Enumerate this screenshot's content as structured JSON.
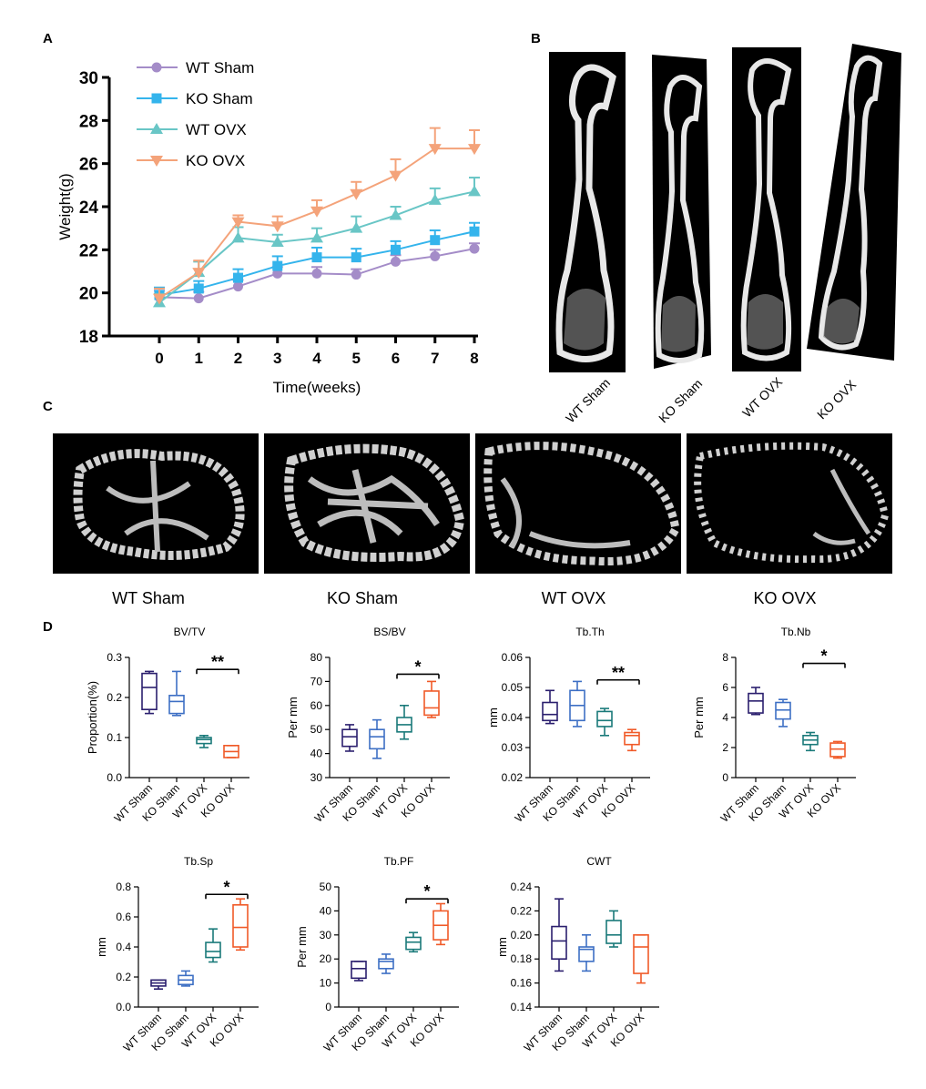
{
  "panels": {
    "a": "A",
    "b": "B",
    "c": "C",
    "d": "D"
  },
  "colors": {
    "wt_sham": "#2b1f6e",
    "ko_sham": "#3d6fc4",
    "wt_ovx": "#1a7a7a",
    "ko_ovx": "#f05a28",
    "lineA_wt_sham": "#a48cc8",
    "lineA_ko_sham": "#34b4ec",
    "lineA_wt_ovx": "#69c6c6",
    "lineA_ko_ovx": "#f4a37a"
  },
  "panel_b": {
    "labels": [
      "WT Sham",
      "KO Sham",
      "WT OVX",
      "KO OVX"
    ]
  },
  "panel_c": {
    "labels": [
      "WT Sham",
      "KO Sham",
      "WT OVX",
      "KO OVX"
    ]
  },
  "chart_data": [
    {
      "type": "line",
      "panel": "A",
      "xlabel": "Time(weeks)",
      "ylabel": "Weight(g)",
      "x": [
        0,
        1,
        2,
        3,
        4,
        5,
        6,
        7,
        8
      ],
      "xlim": [
        0,
        8
      ],
      "ylim": [
        18,
        30
      ],
      "yticks": [
        18,
        20,
        22,
        24,
        26,
        28,
        30
      ],
      "legend_position": "top-left",
      "series": [
        {
          "name": "WT Sham",
          "marker": "circle",
          "values": [
            19.8,
            19.75,
            20.3,
            20.9,
            20.9,
            20.85,
            21.45,
            21.7,
            22.05
          ],
          "errors": [
            0.3,
            0.3,
            0.3,
            0.3,
            0.3,
            0.25,
            0.3,
            0.3,
            0.25
          ]
        },
        {
          "name": "KO Sham",
          "marker": "square",
          "values": [
            19.9,
            20.2,
            20.7,
            21.25,
            21.65,
            21.65,
            22.0,
            22.45,
            22.85
          ],
          "errors": [
            0.35,
            0.35,
            0.4,
            0.45,
            0.45,
            0.4,
            0.4,
            0.45,
            0.4
          ]
        },
        {
          "name": "WT OVX",
          "marker": "triangle-up",
          "values": [
            19.55,
            20.95,
            22.55,
            22.35,
            22.55,
            23.0,
            23.6,
            24.3,
            24.7
          ],
          "errors": [
            0.4,
            0.5,
            0.5,
            0.35,
            0.45,
            0.55,
            0.4,
            0.55,
            0.65
          ]
        },
        {
          "name": "KO OVX",
          "marker": "triangle-down",
          "values": [
            19.75,
            20.95,
            23.3,
            23.1,
            23.8,
            24.6,
            25.45,
            26.7,
            26.7
          ],
          "errors": [
            0.45,
            0.55,
            0.3,
            0.45,
            0.5,
            0.55,
            0.75,
            0.95,
            0.85
          ]
        }
      ]
    },
    {
      "type": "box",
      "panel": "D",
      "title": "BV/TV",
      "ylabel": "Proportion(%)",
      "categories": [
        "WT Sham",
        "KO Sham",
        "WT OVX",
        "KO OVX"
      ],
      "ylim": [
        0.0,
        0.3
      ],
      "yticks": [
        "0.0",
        "0.1",
        "0.2",
        "0.3"
      ],
      "boxes": [
        {
          "min": 0.16,
          "q1": 0.17,
          "median": 0.225,
          "q3": 0.26,
          "max": 0.265
        },
        {
          "min": 0.155,
          "q1": 0.16,
          "median": 0.19,
          "q3": 0.205,
          "max": 0.265
        },
        {
          "min": 0.075,
          "q1": 0.085,
          "median": 0.095,
          "q3": 0.1,
          "max": 0.105
        },
        {
          "min": 0.05,
          "q1": 0.05,
          "median": 0.065,
          "q3": 0.08,
          "max": 0.08
        }
      ],
      "significance": {
        "from": 2,
        "to": 3,
        "label": "**",
        "y": 0.27
      }
    },
    {
      "type": "box",
      "panel": "D",
      "title": "BS/BV",
      "ylabel": "Per mm",
      "categories": [
        "WT Sham",
        "KO Sham",
        "WT OVX",
        "KO OVX"
      ],
      "ylim": [
        30,
        80
      ],
      "yticks": [
        "30",
        "40",
        "50",
        "60",
        "70",
        "80"
      ],
      "boxes": [
        {
          "min": 41,
          "q1": 43,
          "median": 47,
          "q3": 50,
          "max": 52
        },
        {
          "min": 38,
          "q1": 42,
          "median": 47,
          "q3": 50,
          "max": 54
        },
        {
          "min": 46,
          "q1": 49,
          "median": 52,
          "q3": 55,
          "max": 60
        },
        {
          "min": 55,
          "q1": 56,
          "median": 59,
          "q3": 66,
          "max": 70
        }
      ],
      "significance": {
        "from": 2,
        "to": 3,
        "label": "*",
        "y": 73
      }
    },
    {
      "type": "box",
      "panel": "D",
      "title": "Tb.Th",
      "ylabel": "mm",
      "categories": [
        "WT Sham",
        "KO Sham",
        "WT OVX",
        "KO OVX"
      ],
      "ylim": [
        0.02,
        0.06
      ],
      "yticks": [
        "0.02",
        "0.03",
        "0.04",
        "0.05",
        "0.06"
      ],
      "boxes": [
        {
          "min": 0.038,
          "q1": 0.039,
          "median": 0.041,
          "q3": 0.045,
          "max": 0.049
        },
        {
          "min": 0.037,
          "q1": 0.039,
          "median": 0.044,
          "q3": 0.049,
          "max": 0.052
        },
        {
          "min": 0.034,
          "q1": 0.037,
          "median": 0.039,
          "q3": 0.042,
          "max": 0.043
        },
        {
          "min": 0.029,
          "q1": 0.031,
          "median": 0.034,
          "q3": 0.035,
          "max": 0.036
        }
      ],
      "significance": {
        "from": 2,
        "to": 3,
        "label": "**",
        "y": 0.0525
      }
    },
    {
      "type": "box",
      "panel": "D",
      "title": "Tb.Nb",
      "ylabel": "Per mm",
      "categories": [
        "WT Sham",
        "KO Sham",
        "WT OVX",
        "KO OVX"
      ],
      "ylim": [
        0,
        8
      ],
      "yticks": [
        "0",
        "2",
        "4",
        "6",
        "8"
      ],
      "boxes": [
        {
          "min": 4.2,
          "q1": 4.3,
          "median": 5.1,
          "q3": 5.6,
          "max": 6.0
        },
        {
          "min": 3.4,
          "q1": 3.9,
          "median": 4.5,
          "q3": 5.0,
          "max": 5.2
        },
        {
          "min": 1.8,
          "q1": 2.2,
          "median": 2.5,
          "q3": 2.8,
          "max": 3.0
        },
        {
          "min": 1.3,
          "q1": 1.4,
          "median": 1.9,
          "q3": 2.3,
          "max": 2.4
        }
      ],
      "significance": {
        "from": 2,
        "to": 3,
        "label": "*",
        "y": 7.6
      }
    },
    {
      "type": "box",
      "panel": "D",
      "title": "Tb.Sp",
      "ylabel": "mm",
      "categories": [
        "WT Sham",
        "KO Sham",
        "WT OVX",
        "KO OVX"
      ],
      "ylim": [
        0.0,
        0.8
      ],
      "yticks": [
        "0.0",
        "0.2",
        "0.4",
        "0.6",
        "0.8"
      ],
      "boxes": [
        {
          "min": 0.12,
          "q1": 0.14,
          "median": 0.16,
          "q3": 0.18,
          "max": 0.18
        },
        {
          "min": 0.14,
          "q1": 0.15,
          "median": 0.18,
          "q3": 0.21,
          "max": 0.24
        },
        {
          "min": 0.3,
          "q1": 0.33,
          "median": 0.37,
          "q3": 0.43,
          "max": 0.52
        },
        {
          "min": 0.38,
          "q1": 0.4,
          "median": 0.53,
          "q3": 0.68,
          "max": 0.72
        }
      ],
      "significance": {
        "from": 2,
        "to": 3,
        "label": "*",
        "y": 0.75
      }
    },
    {
      "type": "box",
      "panel": "D",
      "title": "Tb.PF",
      "ylabel": "Per mm",
      "categories": [
        "WT Sham",
        "KO Sham",
        "WT OVX",
        "KO OVX"
      ],
      "ylim": [
        0,
        50
      ],
      "yticks": [
        "0",
        "10",
        "20",
        "30",
        "40",
        "50"
      ],
      "boxes": [
        {
          "min": 11,
          "q1": 12,
          "median": 16,
          "q3": 19,
          "max": 19
        },
        {
          "min": 14,
          "q1": 16,
          "median": 19,
          "q3": 20,
          "max": 22
        },
        {
          "min": 23,
          "q1": 24,
          "median": 27,
          "q3": 29,
          "max": 31
        },
        {
          "min": 26,
          "q1": 28,
          "median": 34,
          "q3": 40,
          "max": 43
        }
      ],
      "significance": {
        "from": 2,
        "to": 3,
        "label": "*",
        "y": 45
      }
    },
    {
      "type": "box",
      "panel": "D",
      "title": "CWT",
      "ylabel": "mm",
      "categories": [
        "WT Sham",
        "KO Sham",
        "WT OVX",
        "KO OVX"
      ],
      "ylim": [
        0.14,
        0.24
      ],
      "yticks": [
        "0.14",
        "0.16",
        "0.18",
        "0.20",
        "0.22",
        "0.24"
      ],
      "boxes": [
        {
          "min": 0.17,
          "q1": 0.18,
          "median": 0.195,
          "q3": 0.207,
          "max": 0.23
        },
        {
          "min": 0.17,
          "q1": 0.178,
          "median": 0.188,
          "q3": 0.19,
          "max": 0.2
        },
        {
          "min": 0.19,
          "q1": 0.193,
          "median": 0.2,
          "q3": 0.212,
          "max": 0.22
        },
        {
          "min": 0.16,
          "q1": 0.168,
          "median": 0.19,
          "q3": 0.2,
          "max": 0.2
        }
      ]
    }
  ]
}
